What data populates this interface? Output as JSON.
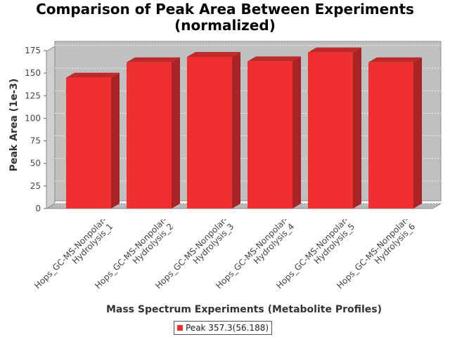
{
  "chart_data": {
    "type": "bar",
    "title_line1": "Comparison of Peak Area Between Experiments",
    "title_line2": "(normalized)",
    "xlabel": "Mass Spectrum Experiments (Metabolite Profiles)",
    "ylabel": "Peak Area (1e-3)",
    "ylim": [
      0,
      175
    ],
    "yticks": [
      0,
      25,
      50,
      75,
      100,
      125,
      150,
      175
    ],
    "grid": true,
    "legend_position": "bottom",
    "categories": [
      [
        "Hops_GC-MS-Nonpolar-",
        "Hydrolysis_1"
      ],
      [
        "Hops_GC-MS-Nonpolar-",
        "Hydrolysis_2"
      ],
      [
        "Hops_GC-MS-Nonpolar-",
        "Hydrolysis_3"
      ],
      [
        "Hops_GC-MS-Nonpolar-",
        "Hydrolysis_4"
      ],
      [
        "Hops_GC-MS-Nonpolar-",
        "Hydrolysis_5"
      ],
      [
        "Hops_GC-MS-Nonpolar-",
        "Hydrolysis_6"
      ]
    ],
    "series": [
      {
        "name": "Peak 357.3(56.188)",
        "color": "#f03030",
        "values": [
          145,
          162,
          168,
          163,
          173,
          162
        ]
      }
    ]
  }
}
